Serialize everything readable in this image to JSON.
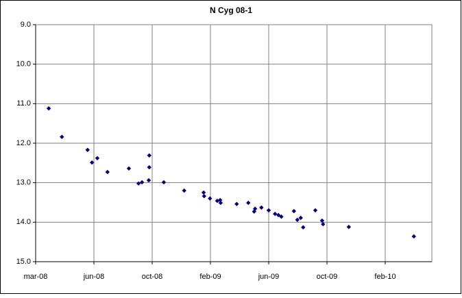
{
  "chart_data": {
    "type": "scatter",
    "title": "N Cyg 08-1",
    "series": [
      {
        "color": "#000080",
        "x": [
          27,
          54,
          107,
          116,
          127,
          148,
          192,
          212,
          219,
          234,
          234,
          233,
          264,
          306,
          346,
          347,
          359,
          374,
          380,
          381,
          414,
          438,
          450,
          452,
          465,
          480,
          493,
          500,
          506,
          532,
          539,
          546,
          551,
          576,
          590,
          592,
          645,
          779
        ],
        "values": [
          11.12,
          11.84,
          12.17,
          12.49,
          12.38,
          12.73,
          12.64,
          13.02,
          12.99,
          12.31,
          12.61,
          12.94,
          12.99,
          13.2,
          13.25,
          13.34,
          13.4,
          13.46,
          13.44,
          13.51,
          13.54,
          13.51,
          13.73,
          13.66,
          13.63,
          13.7,
          13.79,
          13.82,
          13.86,
          13.72,
          13.94,
          13.89,
          14.13,
          13.7,
          13.96,
          14.05,
          14.12,
          14.36
        ]
      }
    ],
    "xlim": [
      0,
      816
    ],
    "xticks": [
      {
        "value": 0,
        "label": "mar-08"
      },
      {
        "value": 120,
        "label": "jun-08"
      },
      {
        "value": 240,
        "label": "oct-08"
      },
      {
        "value": 360,
        "label": "feb-09"
      },
      {
        "value": 480,
        "label": "jun-09"
      },
      {
        "value": 600,
        "label": "oct-09"
      },
      {
        "value": 720,
        "label": "feb-10"
      }
    ],
    "ylim": [
      9,
      15
    ],
    "y_inverted": true,
    "yticks": [
      {
        "value": 9,
        "label": "9.0"
      },
      {
        "value": 10,
        "label": "10.0"
      },
      {
        "value": 11,
        "label": "11.0"
      },
      {
        "value": 12,
        "label": "12.0"
      },
      {
        "value": 13,
        "label": "13.0"
      },
      {
        "value": 14,
        "label": "14.0"
      },
      {
        "value": 15,
        "label": "15.0"
      }
    ],
    "grid": true
  }
}
